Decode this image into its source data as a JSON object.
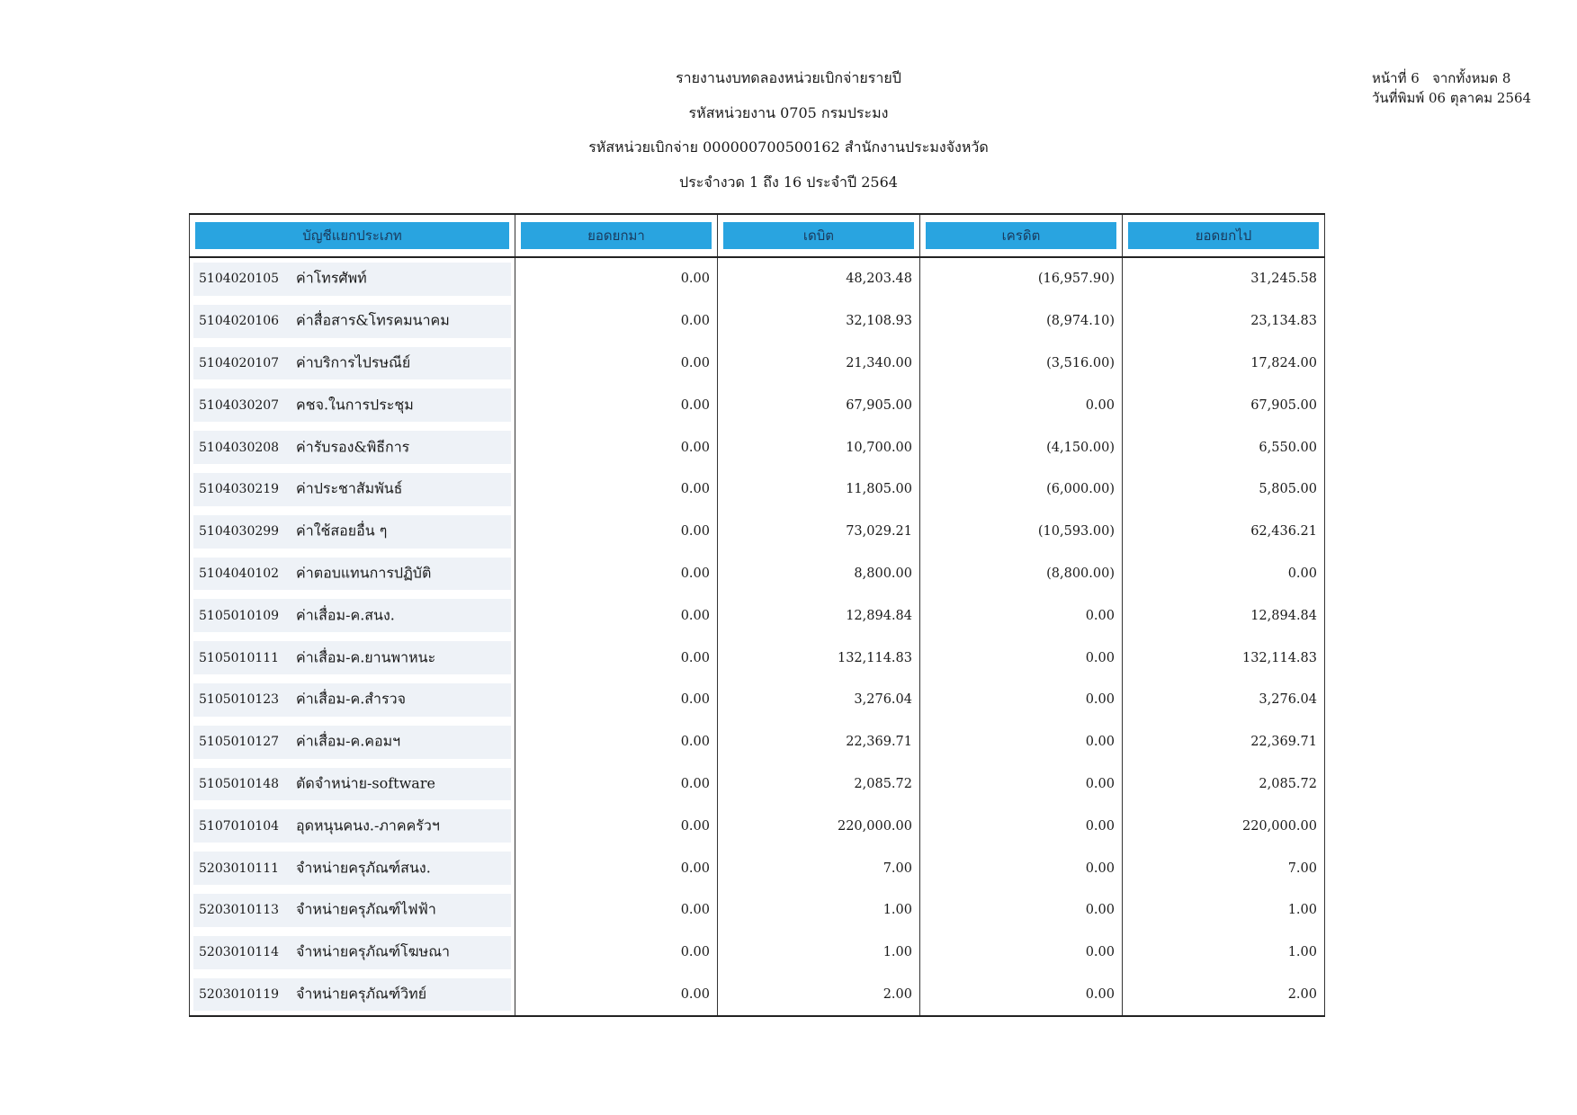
{
  "header": {
    "title": "รายงานงบทดลองหน่วยเบิกจ่ายรายปี",
    "agency": "รหัสหน่วยงาน 0705 กรมประมง",
    "disbursing_unit": "รหัสหน่วยเบิกจ่าย 000000700500162 สำนักงานประมงจังหวัด",
    "period": "ประจำงวด 1 ถึง 16 ประจำปี 2564"
  },
  "page_info": {
    "page": "หน้าที่ 6",
    "total": "จากทั้งหมด 8",
    "print_date": "วันที่พิมพ์ 06 ตุลาคม 2564"
  },
  "columns": [
    "บัญชีแยกประเภท",
    "ยอดยกมา",
    "เดบิต",
    "เครดิต",
    "ยอดยกไป"
  ],
  "rows": [
    {
      "code": "5104020105",
      "name": "ค่าโทรศัพท์",
      "brought_forward": "0.00",
      "debit": "48,203.48",
      "credit": "(16,957.90)",
      "carried_forward": "31,245.58"
    },
    {
      "code": "5104020106",
      "name": "ค่าสื่อสาร&โทรคมนาคม",
      "brought_forward": "0.00",
      "debit": "32,108.93",
      "credit": "(8,974.10)",
      "carried_forward": "23,134.83"
    },
    {
      "code": "5104020107",
      "name": "ค่าบริการไปรษณีย์",
      "brought_forward": "0.00",
      "debit": "21,340.00",
      "credit": "(3,516.00)",
      "carried_forward": "17,824.00"
    },
    {
      "code": "5104030207",
      "name": "คชจ.ในการประชุม",
      "brought_forward": "0.00",
      "debit": "67,905.00",
      "credit": "0.00",
      "carried_forward": "67,905.00"
    },
    {
      "code": "5104030208",
      "name": "ค่ารับรอง&พิธีการ",
      "brought_forward": "0.00",
      "debit": "10,700.00",
      "credit": "(4,150.00)",
      "carried_forward": "6,550.00"
    },
    {
      "code": "5104030219",
      "name": "ค่าประชาสัมพันธ์",
      "brought_forward": "0.00",
      "debit": "11,805.00",
      "credit": "(6,000.00)",
      "carried_forward": "5,805.00"
    },
    {
      "code": "5104030299",
      "name": "ค่าใช้สอยอื่น ๆ",
      "brought_forward": "0.00",
      "debit": "73,029.21",
      "credit": "(10,593.00)",
      "carried_forward": "62,436.21"
    },
    {
      "code": "5104040102",
      "name": "ค่าตอบแทนการปฏิบัติ",
      "brought_forward": "0.00",
      "debit": "8,800.00",
      "credit": "(8,800.00)",
      "carried_forward": "0.00"
    },
    {
      "code": "5105010109",
      "name": "ค่าเสื่อม-ค.สนง.",
      "brought_forward": "0.00",
      "debit": "12,894.84",
      "credit": "0.00",
      "carried_forward": "12,894.84"
    },
    {
      "code": "5105010111",
      "name": "ค่าเสื่อม-ค.ยานพาหนะ",
      "brought_forward": "0.00",
      "debit": "132,114.83",
      "credit": "0.00",
      "carried_forward": "132,114.83"
    },
    {
      "code": "5105010123",
      "name": "ค่าเสื่อม-ค.สำรวจ",
      "brought_forward": "0.00",
      "debit": "3,276.04",
      "credit": "0.00",
      "carried_forward": "3,276.04"
    },
    {
      "code": "5105010127",
      "name": "ค่าเสื่อม-ค.คอมฯ",
      "brought_forward": "0.00",
      "debit": "22,369.71",
      "credit": "0.00",
      "carried_forward": "22,369.71"
    },
    {
      "code": "5105010148",
      "name": "ตัดจำหน่าย-software",
      "brought_forward": "0.00",
      "debit": "2,085.72",
      "credit": "0.00",
      "carried_forward": "2,085.72"
    },
    {
      "code": "5107010104",
      "name": "อุดหนุนคนง.-ภาคครัวฯ",
      "brought_forward": "0.00",
      "debit": "220,000.00",
      "credit": "0.00",
      "carried_forward": "220,000.00"
    },
    {
      "code": "5203010111",
      "name": "จำหน่ายครุภัณฑ์สนง.",
      "brought_forward": "0.00",
      "debit": "7.00",
      "credit": "0.00",
      "carried_forward": "7.00"
    },
    {
      "code": "5203010113",
      "name": "จำหน่ายครุภัณฑ์ไฟฟ้า",
      "brought_forward": "0.00",
      "debit": "1.00",
      "credit": "0.00",
      "carried_forward": "1.00"
    },
    {
      "code": "5203010114",
      "name": "จำหน่ายครุภัณฑ์โฆษณา",
      "brought_forward": "0.00",
      "debit": "1.00",
      "credit": "0.00",
      "carried_forward": "1.00"
    },
    {
      "code": "5203010119",
      "name": "จำหน่ายครุภัณฑ์วิทย์",
      "brought_forward": "0.00",
      "debit": "2.00",
      "credit": "0.00",
      "carried_forward": "2.00"
    }
  ]
}
